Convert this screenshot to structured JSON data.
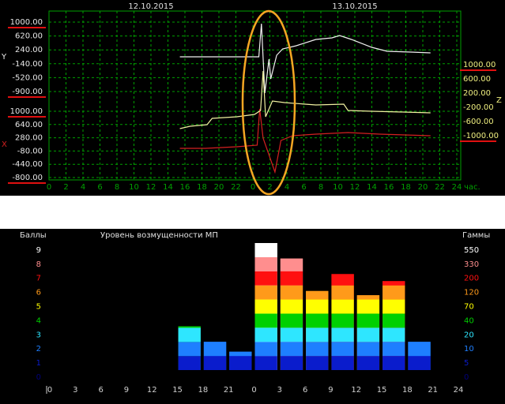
{
  "chart_data": [
    {
      "type": "line",
      "dates": [
        "12.10.2015",
        "13.10.2015"
      ],
      "x_unit": "час.",
      "xlim": [
        0,
        48
      ],
      "xticks": [
        0,
        2,
        4,
        6,
        8,
        10,
        12,
        14,
        16,
        18,
        20,
        22,
        {
          "value": 24,
          "label": "0"
        },
        {
          "value": 26,
          "label": "2"
        },
        {
          "value": 28,
          "label": "4"
        },
        {
          "value": 30,
          "label": "6"
        },
        {
          "value": 32,
          "label": "8"
        },
        {
          "value": 34,
          "label": "10"
        },
        {
          "value": 36,
          "label": "12"
        },
        {
          "value": 38,
          "label": "14"
        },
        {
          "value": 40,
          "label": "16"
        },
        {
          "value": 42,
          "label": "18"
        },
        {
          "value": 44,
          "label": "20"
        },
        {
          "value": 46,
          "label": "22"
        },
        {
          "value": 48,
          "label": "24"
        }
      ],
      "grid": true,
      "grid_color": "#00a000",
      "series": [
        {
          "name": "Y",
          "color": "#f0f0f0",
          "x": [
            15.4,
            24.7,
            25.0,
            25.4,
            25.9,
            26.1,
            26.8,
            27.5,
            29.1,
            31.4,
            33.3,
            34.2,
            35.6,
            38.0,
            39.8,
            42.6,
            44.9
          ],
          "values": [
            50,
            50,
            957,
            -943,
            -15,
            -555,
            93,
            266,
            352,
            525,
            568,
            633,
            525,
            309,
            201,
            180,
            158
          ],
          "ylim": [
            -900,
            1000
          ],
          "yticks": [
            {
              "value": 1000,
              "label": "1000.00"
            },
            {
              "value": 620,
              "label": "620.00"
            },
            {
              "value": 240,
              "label": "240.00"
            },
            {
              "value": -140,
              "label": "-140.00"
            },
            {
              "value": -520,
              "label": "-520.00"
            },
            {
              "value": -900,
              "label": "-900.00"
            }
          ]
        },
        {
          "name": "X",
          "color": "#d42020",
          "x": [
            15.4,
            18.4,
            22.1,
            24.5,
            24.8,
            25.2,
            26.6,
            27.3,
            28.7,
            31.4,
            35.2,
            38.9,
            44.9
          ],
          "values": [
            -7,
            -7,
            36,
            79,
            1064,
            271,
            -650,
            207,
            336,
            379,
            421,
            379,
            336
          ],
          "ylim": [
            -800,
            1000
          ],
          "yticks": [
            {
              "value": 1000,
              "label": "1000.00"
            },
            {
              "value": 640,
              "label": "640.00"
            },
            {
              "value": 280,
              "label": "280.00"
            },
            {
              "value": -80,
              "label": "-80.00"
            },
            {
              "value": -440,
              "label": "-440.00"
            },
            {
              "value": -800,
              "label": "-800.00"
            }
          ]
        },
        {
          "name": "Z",
          "color": "#f0f0a0",
          "x": [
            15.4,
            16.6,
            18.6,
            19.2,
            22.1,
            24.2,
            24.9,
            25.2,
            25.5,
            26.3,
            27.7,
            31.4,
            34.7,
            35.2,
            38.0,
            41.7,
            44.9
          ],
          "values": [
            -800,
            -733,
            -689,
            -511,
            -467,
            -400,
            -289,
            822,
            -467,
            -22,
            -67,
            -133,
            -111,
            -289,
            -311,
            -333,
            -356
          ],
          "ylim": [
            -1000,
            1000
          ],
          "yticks": [
            {
              "value": 1000,
              "label": "1000.00"
            },
            {
              "value": 600,
              "label": "600.00"
            },
            {
              "value": 200,
              "label": "200.00"
            },
            {
              "value": -200,
              "label": "-200.00"
            },
            {
              "value": -600,
              "label": "-600.00"
            },
            {
              "value": -1000,
              "label": "-1000.00"
            }
          ]
        }
      ]
    },
    {
      "type": "histogram",
      "title": "Уровень возмущенности МП",
      "ylabel": "Баллы",
      "y2label": "Гаммы",
      "xlim": [
        0,
        48
      ],
      "xticks": [
        0,
        3,
        6,
        9,
        12,
        15,
        18,
        21,
        {
          "value": 24,
          "label": "0"
        },
        {
          "value": 27,
          "label": "3"
        },
        {
          "value": 30,
          "label": "6"
        },
        {
          "value": 33,
          "label": "9"
        },
        {
          "value": 36,
          "label": "12"
        },
        {
          "value": 39,
          "label": "15"
        },
        {
          "value": 42,
          "label": "18"
        },
        {
          "value": 45,
          "label": "21"
        },
        {
          "value": 48,
          "label": "24"
        }
      ],
      "bins": [
        15,
        18,
        21,
        24,
        27,
        30,
        33,
        36,
        39,
        42,
        45
      ],
      "values": [
        3.1,
        2.0,
        1.3,
        9.0,
        7.9,
        5.6,
        6.8,
        5.3,
        6.3,
        2.0
      ],
      "ylim": [
        0,
        9
      ],
      "levels": [
        {
          "value": 0,
          "gamma": 0,
          "color": "#00007a"
        },
        {
          "value": 1,
          "gamma": 5,
          "color": "#0a1ccc"
        },
        {
          "value": 2,
          "gamma": 10,
          "color": "#1e7fff"
        },
        {
          "value": 3,
          "gamma": 20,
          "color": "#2ee6ff"
        },
        {
          "value": 4,
          "gamma": 40,
          "color": "#00d000"
        },
        {
          "value": 5,
          "gamma": 70,
          "color": "#ffff00"
        },
        {
          "value": 6,
          "gamma": 120,
          "color": "#ff9a1a"
        },
        {
          "value": 7,
          "gamma": 200,
          "color": "#ff1010"
        },
        {
          "value": 8,
          "gamma": 330,
          "color": "#ff8e8e"
        },
        {
          "value": 9,
          "gamma": 550,
          "color": "#ffffff"
        }
      ]
    }
  ]
}
